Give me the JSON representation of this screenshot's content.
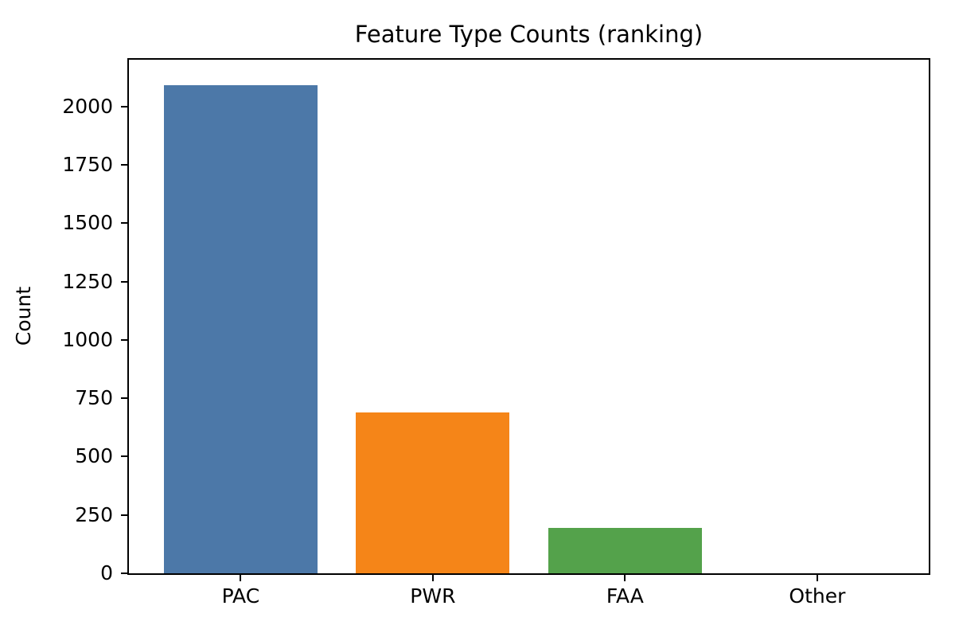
{
  "chart_data": {
    "type": "bar",
    "title": "Feature Type Counts (ranking)",
    "xlabel": "",
    "ylabel": "Count",
    "categories": [
      "PAC",
      "PWR",
      "FAA",
      "Other"
    ],
    "values": [
      2092,
      689,
      193,
      0
    ],
    "bar_colors": [
      "#4C78A8",
      "#F58518",
      "#54A24B",
      null
    ],
    "yticks": [
      0,
      250,
      500,
      750,
      1000,
      1250,
      1500,
      1750,
      2000
    ],
    "ylim": [
      0,
      2200
    ],
    "grid": false,
    "legend": null,
    "background_color": "#ffffff",
    "spine_color": "#000000",
    "text_color": "#000000"
  }
}
